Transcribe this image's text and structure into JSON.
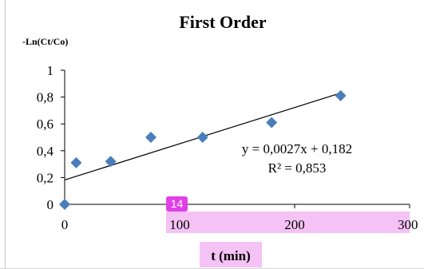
{
  "annotation_badge": "14",
  "highlight_color": "#f4c2f4",
  "badge_color": "#e040e6",
  "marker_color": "#4a7ebb",
  "chart_data": {
    "type": "scatter",
    "title": "First Order",
    "ylabel": "-Ln(Ct/Co)",
    "xlabel": "t (min)",
    "xlim": [
      0,
      300
    ],
    "ylim": [
      0,
      1
    ],
    "xticks": [
      0,
      100,
      200,
      300
    ],
    "xtick_labels": [
      "0",
      "100",
      "200",
      "300"
    ],
    "yticks": [
      0,
      0.2,
      0.4,
      0.6,
      0.8,
      1
    ],
    "ytick_labels": [
      "0",
      "0,2",
      "0,4",
      "0,6",
      "0,8",
      "1"
    ],
    "grid": false,
    "series": [
      {
        "marker": "diamond",
        "x": [
          0,
          10,
          40,
          75,
          120,
          180,
          240
        ],
        "y": [
          0,
          0.31,
          0.32,
          0.5,
          0.5,
          0.61,
          0.81
        ]
      }
    ],
    "trendline": {
      "slope": 0.0027,
      "intercept": 0.182,
      "x_range": [
        0,
        240
      ],
      "equation": "y = 0,0027x + 0,182",
      "r_squared": "R² = 0,853"
    }
  }
}
